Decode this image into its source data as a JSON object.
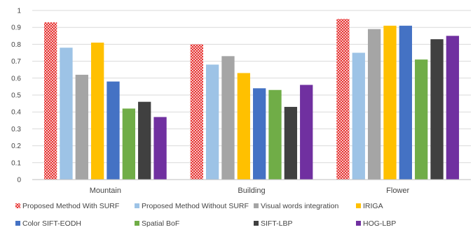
{
  "chart_data": {
    "type": "bar",
    "categories": [
      "Mountain",
      "Building",
      "Flower"
    ],
    "yticks": [
      "0",
      "0.1",
      "0.2",
      "0.3",
      "0.4",
      "0.5",
      "0.6",
      "0.7",
      "0.8",
      "0.9",
      "1"
    ],
    "ylim": [
      0,
      1
    ],
    "grid": true,
    "legend_position": "bottom",
    "series": [
      {
        "name": "Proposed Method With SURF",
        "color": "#e8312f",
        "pattern": "checker",
        "values": [
          0.93,
          0.8,
          0.95
        ]
      },
      {
        "name": "Proposed Method Without SURF",
        "color": "#9dc3e6",
        "values": [
          0.78,
          0.68,
          0.75
        ]
      },
      {
        "name": "Visual words integration",
        "color": "#a5a5a5",
        "values": [
          0.62,
          0.73,
          0.89
        ]
      },
      {
        "name": "IRIGA",
        "color": "#ffc000",
        "values": [
          0.81,
          0.63,
          0.91
        ]
      },
      {
        "name": "Color SIFT-EODH",
        "color": "#4472c4",
        "values": [
          0.58,
          0.54,
          0.91
        ]
      },
      {
        "name": "Spatial BoF",
        "color": "#70ad47",
        "values": [
          0.42,
          0.53,
          0.71
        ]
      },
      {
        "name": "SIFT-LBP",
        "color": "#404040",
        "values": [
          0.46,
          0.43,
          0.83
        ]
      },
      {
        "name": "HOG-LBP",
        "color": "#7030a0",
        "values": [
          0.37,
          0.56,
          0.85
        ]
      }
    ]
  }
}
